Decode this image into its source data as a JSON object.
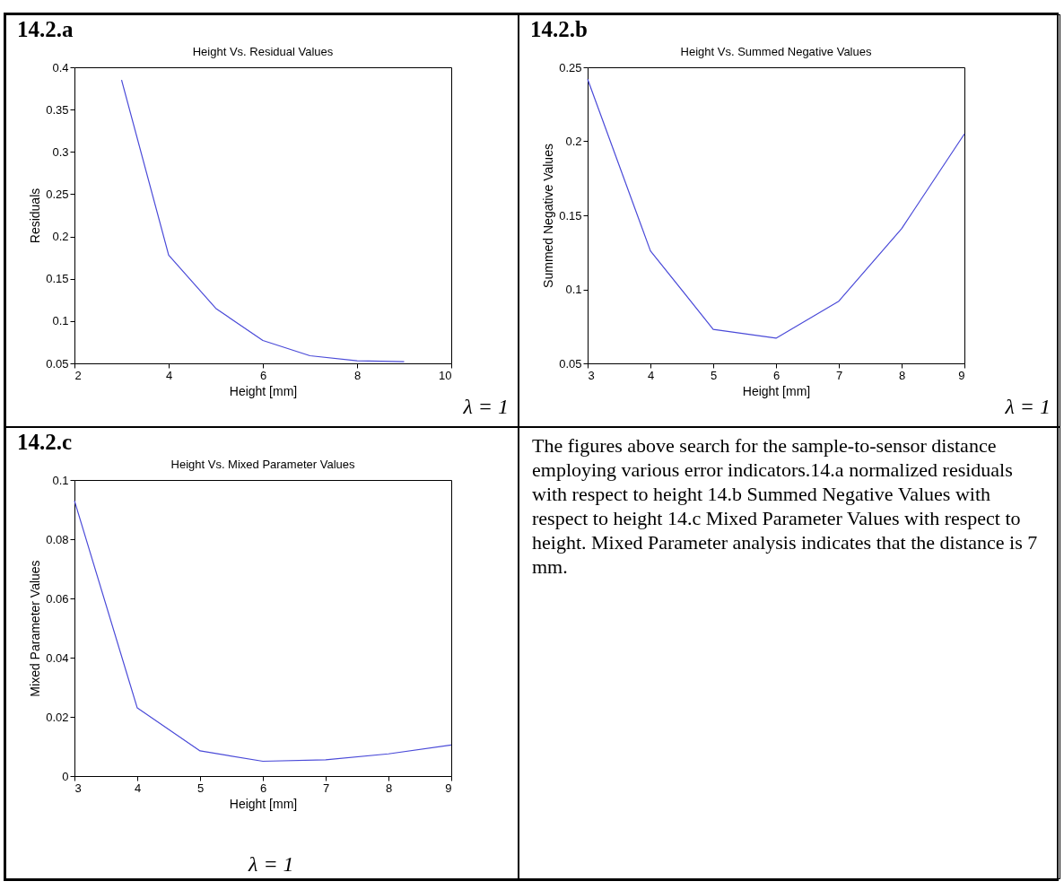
{
  "chart_data": [
    {
      "type": "line",
      "title": "Height Vs. Residual Values",
      "xlabel": "Height  [mm]",
      "ylabel": "Residuals",
      "x": [
        3,
        4,
        5,
        6,
        7,
        8,
        9
      ],
      "values": [
        0.385,
        0.178,
        0.115,
        0.077,
        0.059,
        0.053,
        0.052
      ],
      "color": "#4a4ad8",
      "xlim": [
        2,
        10
      ],
      "xticks": [
        2,
        4,
        6,
        8,
        10
      ],
      "ylim": [
        0.05,
        0.4
      ],
      "yticks": [
        0.05,
        0.1,
        0.15,
        0.2,
        0.25,
        0.3,
        0.35,
        0.4
      ],
      "annotations": [
        "14.2.a",
        "λ = 1"
      ]
    },
    {
      "type": "line",
      "title": "Height Vs. Summed Negative Values",
      "xlabel": "Height  [mm]",
      "ylabel": "Summed Negative Values",
      "x": [
        3,
        4,
        5,
        6,
        7,
        8,
        9
      ],
      "values": [
        0.242,
        0.126,
        0.073,
        0.067,
        0.092,
        0.141,
        0.205
      ],
      "color": "#4a4ad8",
      "xlim": [
        3,
        9
      ],
      "xticks": [
        3,
        4,
        5,
        6,
        7,
        8,
        9
      ],
      "ylim": [
        0.05,
        0.25
      ],
      "yticks": [
        0.05,
        0.1,
        0.15,
        0.2,
        0.25
      ],
      "annotations": [
        "14.2.b",
        "λ = 1"
      ]
    },
    {
      "type": "line",
      "title": "Height Vs. Mixed Parameter Values",
      "xlabel": "Height  [mm]",
      "ylabel": "Mixed Parameter Values",
      "x": [
        3,
        4,
        5,
        6,
        7,
        8,
        9
      ],
      "values": [
        0.093,
        0.023,
        0.0085,
        0.005,
        0.0055,
        0.0075,
        0.0105
      ],
      "color": "#4a4ad8",
      "xlim": [
        3,
        9
      ],
      "xticks": [
        3,
        4,
        5,
        6,
        7,
        8,
        9
      ],
      "ylim": [
        0,
        0.1
      ],
      "yticks": [
        0,
        0.02,
        0.04,
        0.06,
        0.08,
        0.1
      ],
      "annotations": [
        "14.2.c",
        "λ = 1"
      ]
    },
    {
      "type": "other",
      "annotations": [
        "The figures above search for the sample-to-sensor distance employing various error indicators.14.a normalized residuals with respect to height 14.b Summed Negative Values with respect to height 14.c  Mixed Parameter Values with respect to height.  Mixed Parameter analysis indicates that the distance is 7 mm."
      ]
    }
  ]
}
